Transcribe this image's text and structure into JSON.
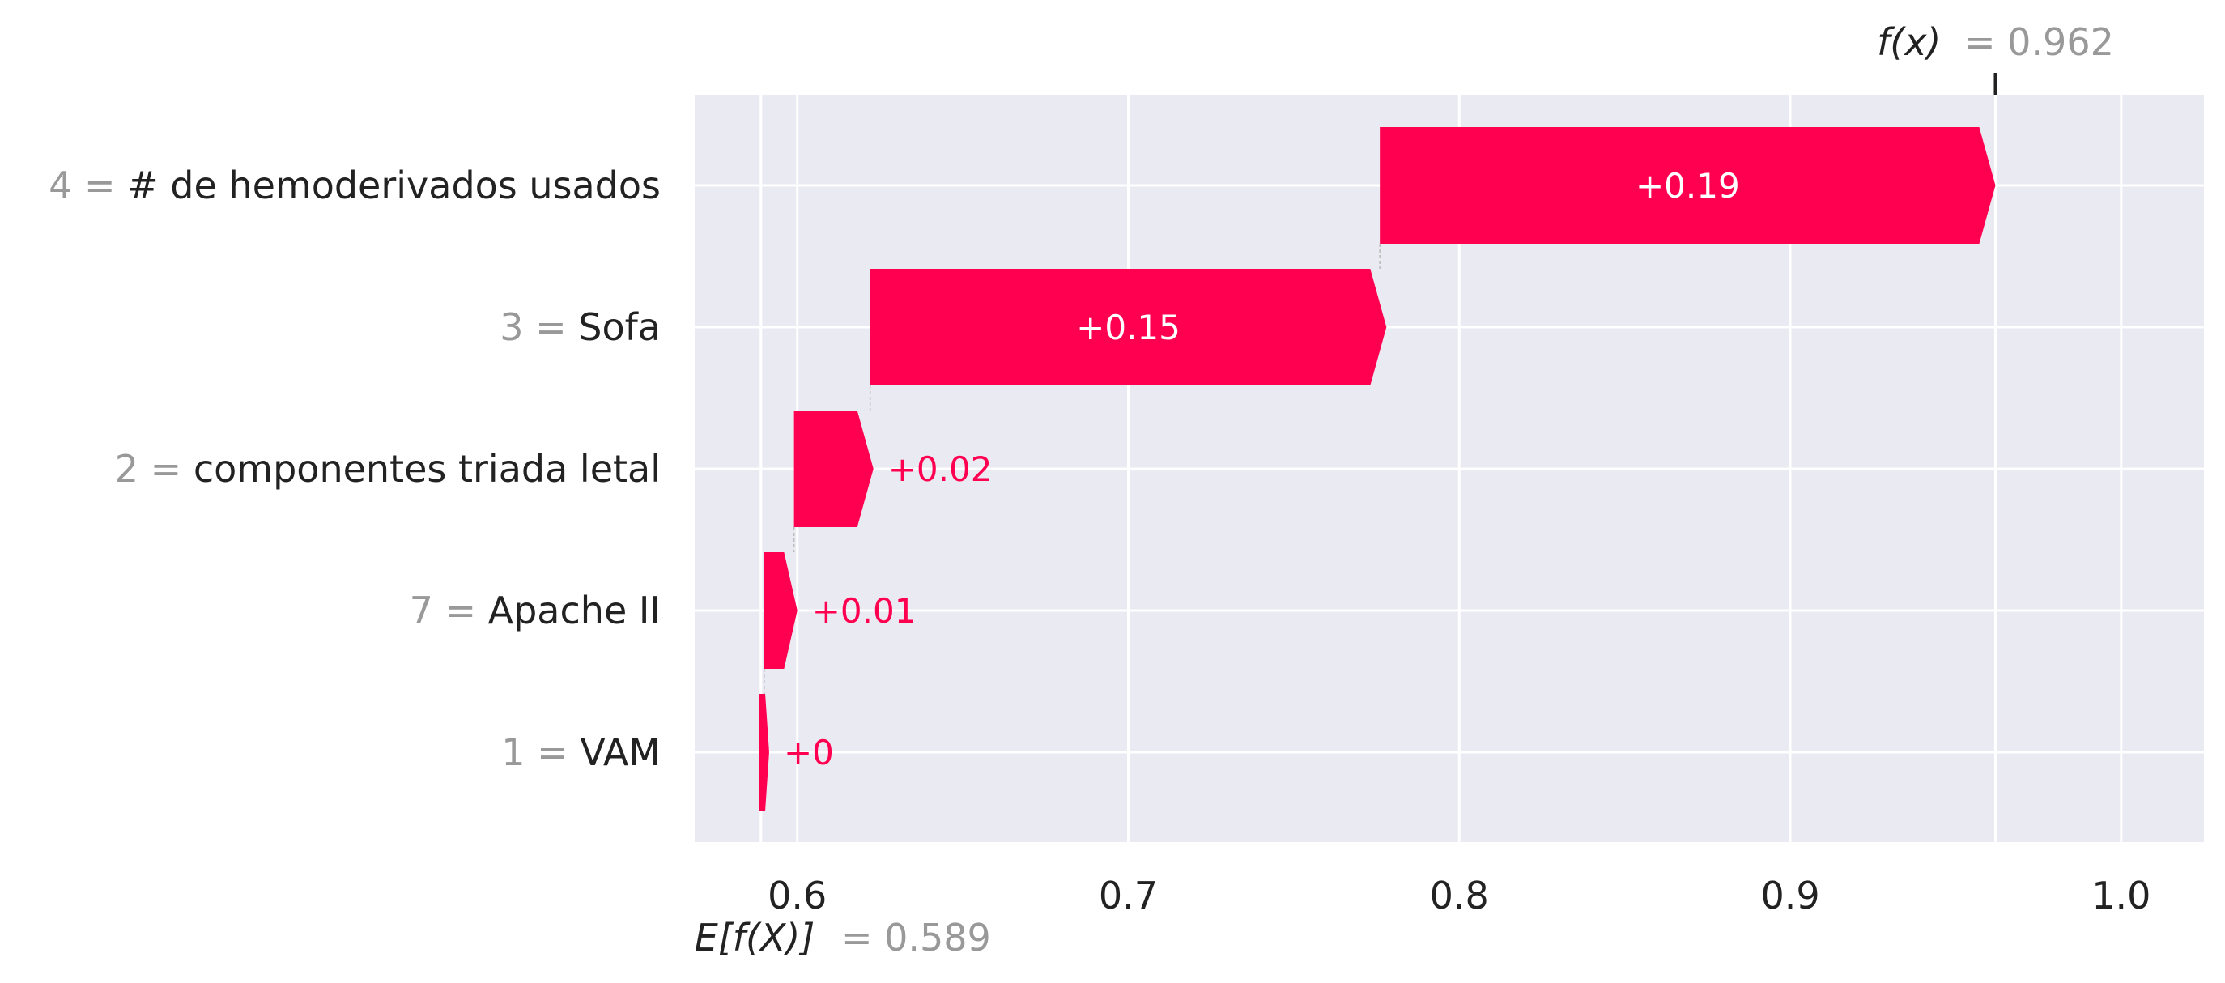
{
  "chart_data": {
    "type": "waterfall",
    "base_value": 0.589,
    "output_value": 0.962,
    "base_label_name": "E[f(X)]",
    "base_label_value": "= 0.589",
    "output_label_name": "f(x)",
    "output_label_value": "= 0.962",
    "xlim": [
      0.569,
      1.025
    ],
    "xticks": [
      0.6,
      0.7,
      0.8,
      0.9,
      1.0
    ],
    "xtick_labels": [
      "0.6",
      "0.7",
      "0.8",
      "0.9",
      "1.0"
    ],
    "grid": true,
    "positive_color": "#ff0051",
    "background_color": "#eaeaf2",
    "features": [
      {
        "value": "4 =",
        "name": "# de hemoderivados  usados",
        "start": 0.776,
        "end": 0.962,
        "label": "+0.19"
      },
      {
        "value": "3 =",
        "name": "Sofa",
        "start": 0.622,
        "end": 0.778,
        "label": "+0.15"
      },
      {
        "value": "2 =",
        "name": "componentes triada letal",
        "start": 0.599,
        "end": 0.623,
        "label": "+0.02"
      },
      {
        "value": "7 =",
        "name": "Apache II",
        "start": 0.59,
        "end": 0.6,
        "label": "+0.01"
      },
      {
        "value": "1 =",
        "name": "VAM",
        "start": 0.5885,
        "end": 0.5915,
        "label": "+0"
      }
    ]
  }
}
